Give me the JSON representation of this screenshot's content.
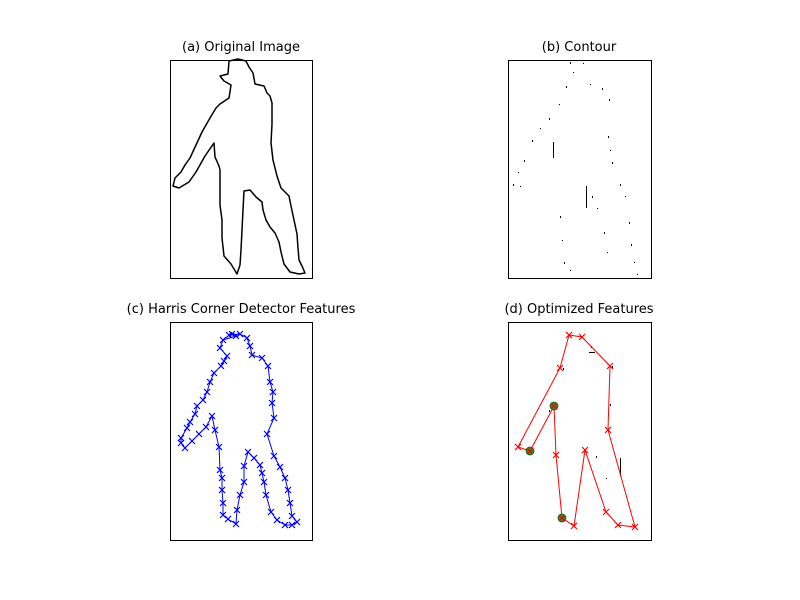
{
  "panels": {
    "a": {
      "title": "(a) Original Image"
    },
    "b": {
      "title": "(b) Contour"
    },
    "c": {
      "title": "(c) Harris Corner Detector Features"
    },
    "d": {
      "title": "(d) Optimized Features"
    }
  },
  "colors": {
    "outline": "#000000",
    "harris": "#0000ff",
    "optimized": "#ff0000",
    "highlight_fill": "#2a8c2a"
  }
}
